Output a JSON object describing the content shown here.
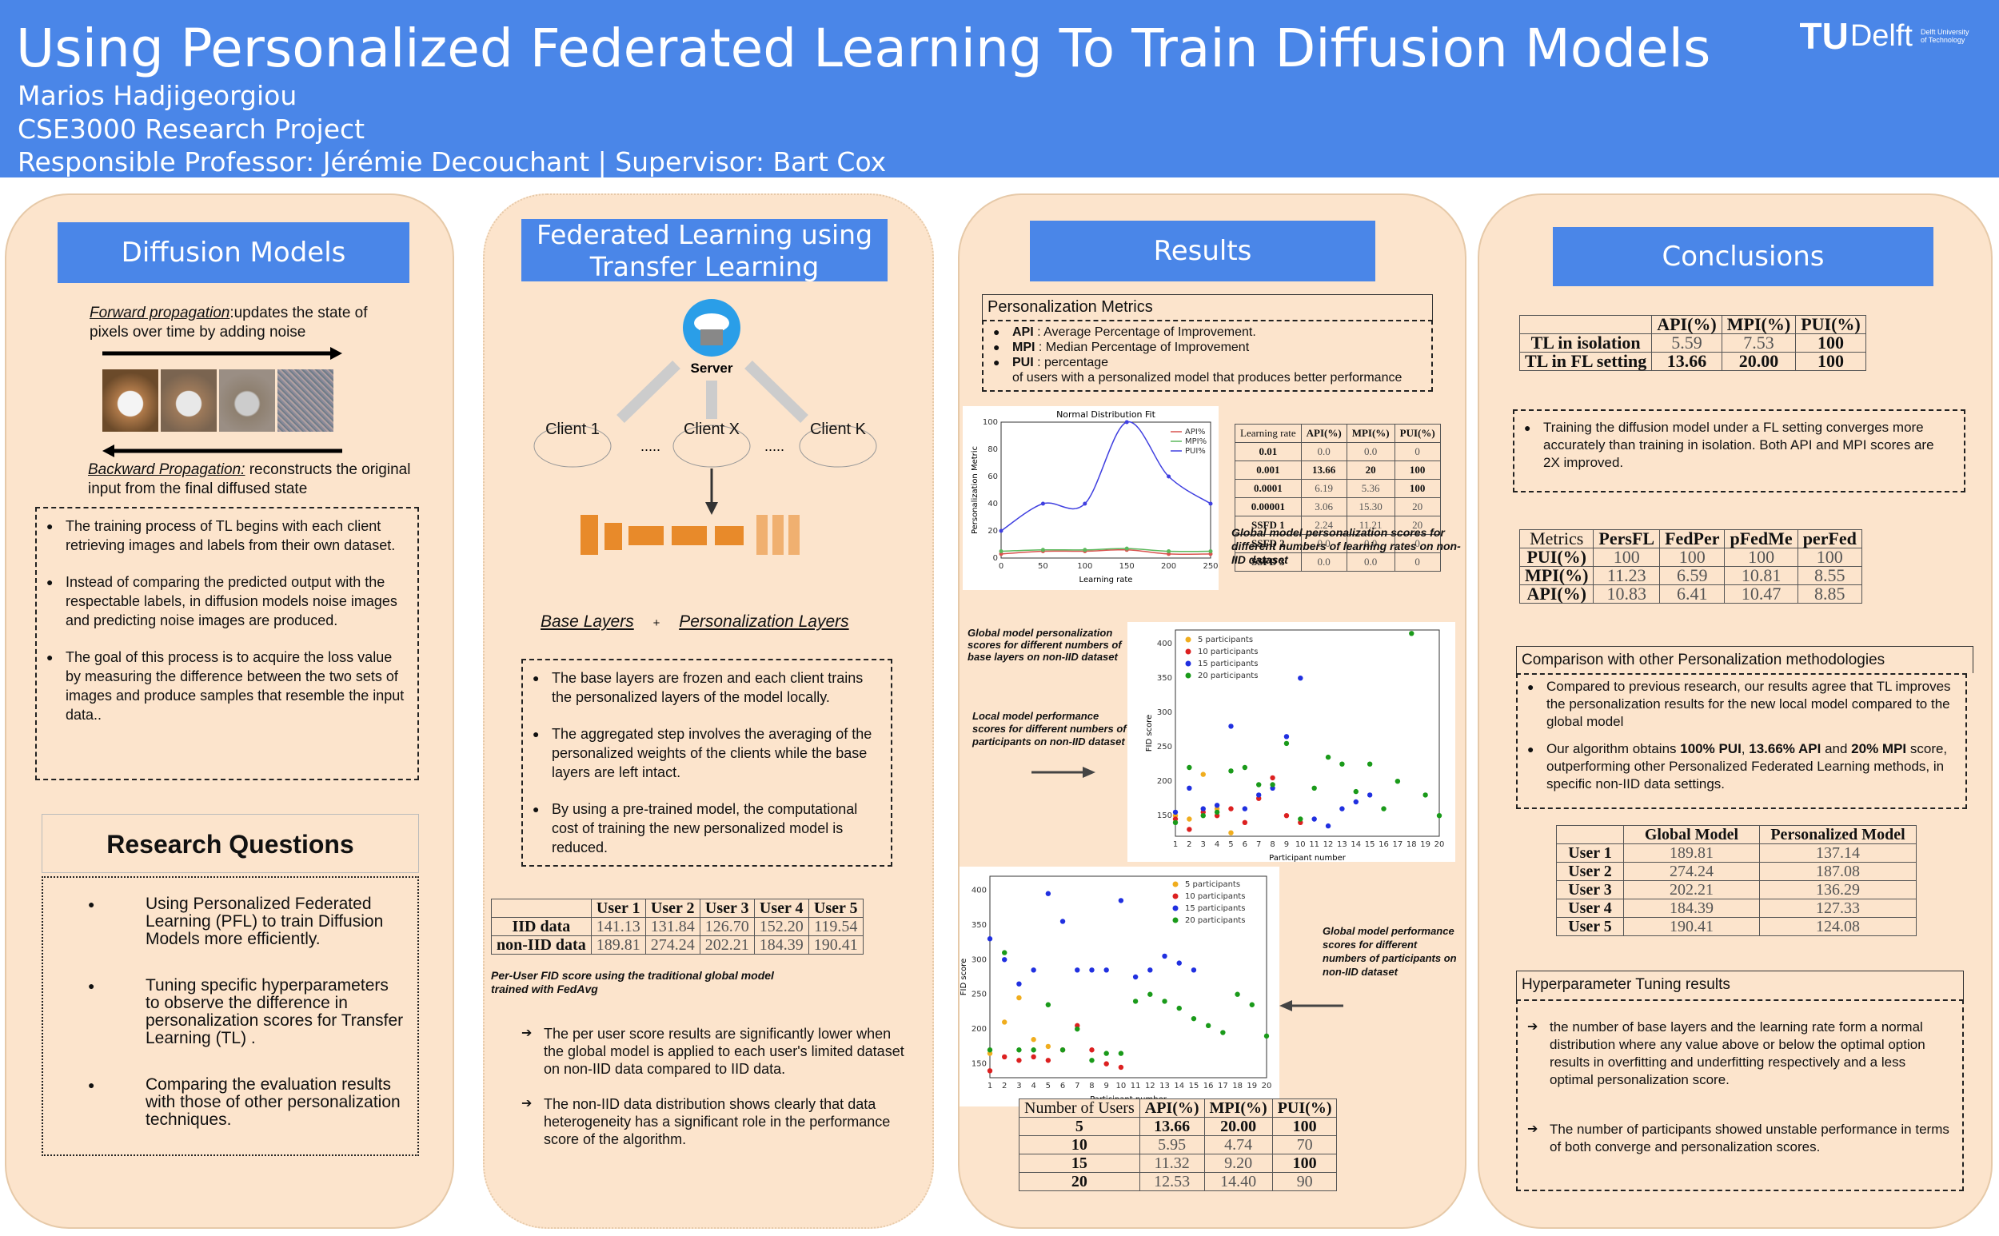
{
  "header": {
    "title": "Using Personalized Federated Learning To Train Diffusion Models",
    "author": "Marios Hadjigeorgiou",
    "course": "CSE3000 Research Project",
    "supervisors": "Responsible Professor: Jérémie Decouchant | Supervisor: Bart Cox",
    "logo_tu": "TU",
    "logo_delft": "Delft",
    "logo_small": "Delft University of Technology"
  },
  "col1": {
    "banner": "Diffusion Models",
    "forward_label": "Forward propagation",
    "forward_text": ":updates the  state of pixels over time by adding noise",
    "backward_label": "Backward Propagation:",
    "backward_text": " reconstructs the original input from the final diffused state",
    "bullets": [
      "The training process of TL begins with each client retrieving images and labels from their own dataset.",
      " Instead of comparing the predicted output with the respectable labels, in diffusion models noise images and predicting noise images are produced.",
      " The goal of this process is to acquire the loss value by measuring the difference between the two sets of images and produce samples that resemble the input data.."
    ],
    "rq_title": "Research Questions",
    "rq": [
      "Using Personalized Federated Learning (PFL) to train Diffusion Models more efficiently.",
      "Tuning specific hyperparameters to observe the difference in personalization scores for Transfer Learning (TL) .",
      "Comparing the evaluation results with those of other personalization techniques."
    ]
  },
  "col2": {
    "banner": "Federated Learning using Transfer Learning",
    "server": "Server",
    "client1": "Client 1",
    "clientx": "Client X",
    "clientk": "Client K",
    "dots": ".....",
    "base_layers": "Base Layers",
    "plus": "+",
    "pers_layers": "Personalization Layers",
    "bullets": [
      "The base layers are frozen and each client trains the personalized layers of the model locally.",
      " The aggregated step involves the averaging of the personalized weights of the clients while the base layers are left intact.",
      "By using a pre-trained model, the computational cost of training the new personalized model is reduced."
    ],
    "fid_table": {
      "headers": [
        "",
        "User 1",
        "User 2",
        "User 3",
        "User 4",
        "User 5"
      ],
      "rows": [
        [
          "IID data",
          "141.13",
          "131.84",
          "126.70",
          "152.20",
          "119.54"
        ],
        [
          "non-IID data",
          "189.81",
          "274.24",
          "202.21",
          "184.39",
          "190.41"
        ]
      ]
    },
    "fid_caption": "Per-User FID score using the traditional global model trained with FedAvg",
    "arrows": [
      "The per user score results are significantly lower when the global model is applied to each user's limited dataset on non-IID data compared to IID data.",
      "The non-IID data distribution shows clearly that data heterogeneity has a significant role in the performance score of the algorithm."
    ]
  },
  "col3": {
    "banner": "Results",
    "pm_title": "Personalization Metrics",
    "pm_items": [
      {
        "key": "API",
        "text": " : Average Percentage of Improvement."
      },
      {
        "key": "MPI",
        "text": " : Median Percentage of Improvement"
      },
      {
        "key": "PUI",
        "text": " : percentage"
      }
    ],
    "pm_extra": "of users with a personalized model that produces better performance",
    "lr_table": {
      "headers": [
        "Learning rate",
        "API(%)",
        "MPI(%)",
        "PUI(%)"
      ],
      "rows": [
        [
          "0.01",
          "0.0",
          "0.0",
          "0"
        ],
        [
          "0.001",
          "13.66",
          "20",
          "100"
        ],
        [
          "0.0001",
          "6.19",
          "5.36",
          "100"
        ],
        [
          "0.00001",
          "3.06",
          "15.30",
          "20"
        ],
        [
          "SSFD 1",
          "2.24",
          "11.21",
          "20"
        ],
        [
          "SSFD 2",
          "0.0",
          "0.0",
          "0"
        ],
        [
          "SSFD 3",
          "0.0",
          "0.0",
          "0"
        ]
      ]
    },
    "lr_caption": "Global model personalization  scores for different numbers of learning rates on non-IID dataset",
    "bl_caption": "Global model personalization scores for different numbers of base layers on non-IID dataset",
    "local_caption": "Local model performance scores for different numbers of participants on non-IID dataset",
    "global_caption": "Global model performance scores for different numbers of participants on non-IID dataset",
    "users_table": {
      "headers": [
        "Number of Users",
        "API(%)",
        "MPI(%)",
        "PUI(%)"
      ],
      "rows": [
        [
          "5",
          "13.66",
          "20.00",
          "100"
        ],
        [
          "10",
          "5.95",
          "4.74",
          "70"
        ],
        [
          "15",
          "11.32",
          "9.20",
          "100"
        ],
        [
          "20",
          "12.53",
          "14.40",
          "90"
        ]
      ]
    }
  },
  "col4": {
    "banner": "Conclusions",
    "tl_table": {
      "headers": [
        "",
        "API(%)",
        "MPI(%)",
        "PUI(%)"
      ],
      "rows": [
        [
          "TL in isolation",
          "5.59",
          "7.53",
          "100"
        ],
        [
          "TL in FL setting",
          "13.66",
          "20.00",
          "100"
        ]
      ]
    },
    "tl_text": "Training the diffusion model under a FL setting converges more accurately than training in isolation. Both API and MPI scores are 2X improved.",
    "methods_table": {
      "headers": [
        "Metrics",
        "PersFL",
        "FedPer",
        "pFedMe",
        "perFed"
      ],
      "rows": [
        [
          "PUI(%)",
          "100",
          "100",
          "100",
          "100"
        ],
        [
          "MPI(%)",
          "11.23",
          "6.59",
          "10.81",
          "8.55"
        ],
        [
          "API(%)",
          "10.83",
          "6.41",
          "10.47",
          "8.85"
        ]
      ]
    },
    "comp_title": "Comparison with other Personalization methodologies",
    "comp_b1": "Compared to previous research, our results agree that TL improves the personalization results for the new local model compared to the global model",
    "comp_b2_pre": "Our algorithm obtains ",
    "comp_b2_pui": "100% PUI",
    "comp_b2_sep": ", ",
    "comp_b2_api": "13.66% API",
    "comp_b2_and": " and ",
    "comp_b2_mpi": "20% MPI",
    "comp_b2_post": " score, outperforming other Personalized Federated Learning methods,  in specific non-IID data settings.",
    "gm_table": {
      "headers": [
        "",
        "Global Model",
        "Personalized Model"
      ],
      "rows": [
        [
          "User 1",
          "189.81",
          "137.14"
        ],
        [
          "User 2",
          "274.24",
          "187.08"
        ],
        [
          "User 3",
          "202.21",
          "136.29"
        ],
        [
          "User 4",
          "184.39",
          "127.33"
        ],
        [
          "User 5",
          "190.41",
          "124.08"
        ]
      ]
    },
    "hp_title": "Hyperparameter Tuning results",
    "hp_items": [
      "the number of base layers and the learning rate form a normal distribution where any value above or below the optimal option results in overfitting and underfitting respectively and a less optimal personalization score.",
      "The number of participants showed unstable performance in terms of both converge and personalization scores."
    ]
  },
  "chart_data": [
    {
      "type": "line",
      "title": "Normal Distribution Fit",
      "xlabel": "Learning rate",
      "ylabel": "Personalization Metric",
      "x": [
        0,
        50,
        100,
        150,
        200,
        250
      ],
      "xlim": [
        0,
        250
      ],
      "ylim": [
        0,
        100
      ],
      "xticks": [
        0,
        50,
        100,
        150,
        200,
        250
      ],
      "yticks": [
        0,
        20,
        40,
        60,
        80,
        100
      ],
      "legend": "top-right",
      "series": [
        {
          "name": "API%",
          "color": "#d9534f",
          "values": [
            3,
            5,
            5,
            6,
            3,
            3
          ]
        },
        {
          "name": "MPI%",
          "color": "#5cb85c",
          "values": [
            5,
            6,
            6,
            7,
            5,
            5
          ]
        },
        {
          "name": "PUI%",
          "color": "#4040e0",
          "values": [
            20,
            40,
            40,
            100,
            60,
            40
          ]
        }
      ]
    },
    {
      "type": "scatter",
      "xlabel": "Participant number",
      "ylabel": "FID score",
      "xlim": [
        1,
        20
      ],
      "ylim": [
        120,
        420
      ],
      "yticks": [
        150,
        200,
        250,
        300,
        350,
        400
      ],
      "legend": "top-left",
      "series": [
        {
          "name": "5 participants",
          "color": "#f0ad1e",
          "points": [
            [
              1,
              150
            ],
            [
              2,
              145
            ],
            [
              3,
              210
            ],
            [
              4,
              160
            ],
            [
              5,
              125
            ]
          ]
        },
        {
          "name": "10 participants",
          "color": "#dc2020",
          "points": [
            [
              1,
              145
            ],
            [
              2,
              130
            ],
            [
              3,
              155
            ],
            [
              4,
              150
            ],
            [
              5,
              160
            ],
            [
              6,
              140
            ],
            [
              7,
              175
            ],
            [
              8,
              205
            ],
            [
              9,
              150
            ],
            [
              10,
              140
            ]
          ]
        },
        {
          "name": "15 participants",
          "color": "#2030e0",
          "points": [
            [
              1,
              155
            ],
            [
              2,
              190
            ],
            [
              3,
              160
            ],
            [
              4,
              165
            ],
            [
              5,
              280
            ],
            [
              6,
              160
            ],
            [
              7,
              180
            ],
            [
              8,
              190
            ],
            [
              9,
              265
            ],
            [
              10,
              350
            ],
            [
              11,
              145
            ],
            [
              12,
              135
            ],
            [
              13,
              160
            ],
            [
              14,
              170
            ],
            [
              15,
              180
            ]
          ]
        },
        {
          "name": "20 participants",
          "color": "#1a9a1a",
          "points": [
            [
              1,
              140
            ],
            [
              2,
              220
            ],
            [
              3,
              150
            ],
            [
              4,
              155
            ],
            [
              5,
              215
            ],
            [
              6,
              220
            ],
            [
              7,
              195
            ],
            [
              8,
              195
            ],
            [
              9,
              255
            ],
            [
              10,
              145
            ],
            [
              11,
              190
            ],
            [
              12,
              235
            ],
            [
              13,
              225
            ],
            [
              14,
              185
            ],
            [
              15,
              225
            ],
            [
              16,
              160
            ],
            [
              17,
              200
            ],
            [
              18,
              415
            ],
            [
              19,
              180
            ],
            [
              20,
              150
            ]
          ]
        }
      ]
    },
    {
      "type": "scatter",
      "xlabel": "Participant number",
      "ylabel": "FID score",
      "xlim": [
        1,
        20
      ],
      "ylim": [
        130,
        420
      ],
      "yticks": [
        150,
        200,
        250,
        300,
        350,
        400
      ],
      "legend": "top-right",
      "series": [
        {
          "name": "5 participants",
          "color": "#f0ad1e",
          "points": [
            [
              1,
              165
            ],
            [
              2,
              210
            ],
            [
              3,
              245
            ],
            [
              4,
              185
            ],
            [
              5,
              175
            ]
          ]
        },
        {
          "name": "10 participants",
          "color": "#dc2020",
          "points": [
            [
              1,
              140
            ],
            [
              2,
              160
            ],
            [
              3,
              155
            ],
            [
              4,
              160
            ],
            [
              5,
              155
            ],
            [
              6,
              170
            ],
            [
              7,
              205
            ],
            [
              8,
              170
            ],
            [
              9,
              150
            ],
            [
              10,
              145
            ]
          ]
        },
        {
          "name": "15 participants",
          "color": "#2030e0",
          "points": [
            [
              1,
              330
            ],
            [
              2,
              300
            ],
            [
              3,
              265
            ],
            [
              4,
              285
            ],
            [
              5,
              395
            ],
            [
              6,
              355
            ],
            [
              7,
              285
            ],
            [
              8,
              285
            ],
            [
              9,
              285
            ],
            [
              10,
              385
            ],
            [
              11,
              275
            ],
            [
              12,
              285
            ],
            [
              13,
              305
            ],
            [
              14,
              295
            ],
            [
              15,
              285
            ]
          ]
        },
        {
          "name": "20 participants",
          "color": "#1a9a1a",
          "points": [
            [
              1,
              170
            ],
            [
              2,
              310
            ],
            [
              3,
              170
            ],
            [
              4,
              170
            ],
            [
              5,
              235
            ],
            [
              6,
              170
            ],
            [
              7,
              200
            ],
            [
              8,
              155
            ],
            [
              9,
              165
            ],
            [
              10,
              165
            ],
            [
              11,
              240
            ],
            [
              12,
              250
            ],
            [
              13,
              240
            ],
            [
              14,
              230
            ],
            [
              15,
              215
            ],
            [
              16,
              205
            ],
            [
              17,
              195
            ],
            [
              18,
              250
            ],
            [
              19,
              235
            ],
            [
              20,
              190
            ]
          ]
        }
      ]
    }
  ]
}
